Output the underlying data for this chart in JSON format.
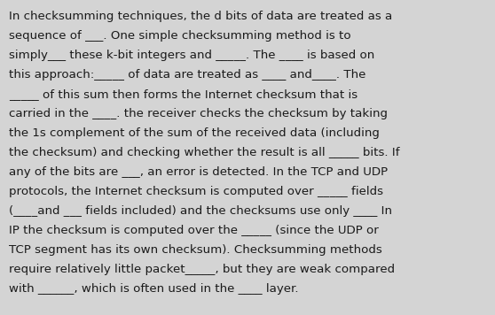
{
  "background_color": "#d4d4d4",
  "text_color": "#1a1a1a",
  "font_size": 9.6,
  "lines": [
    "In checksumming techniques, the d bits of data are treated as a",
    "sequence of ___. One simple checksumming method is to",
    "simply___ these k-bit integers and _____. The ____ is based on",
    "this approach:_____ of data are treated as ____ and____. The",
    "_____ of this sum then forms the Internet checksum that is",
    "carried in the ____. the receiver checks the checksum by taking",
    "the 1s complement of the sum of the received data (including",
    "the checksum) and checking whether the result is all _____ bits. If",
    "any of the bits are ___, an error is detected. In the TCP and UDP",
    "protocols, the Internet checksum is computed over _____ fields",
    "(____and ___ fields included) and the checksums use only ____ In",
    "IP the checksum is computed over the _____ (since the UDP or",
    "TCP segment has its own checksum). Checksumming methods",
    "require relatively little packet_____, but they are weak compared",
    "with ______, which is often used in the ____ layer."
  ]
}
